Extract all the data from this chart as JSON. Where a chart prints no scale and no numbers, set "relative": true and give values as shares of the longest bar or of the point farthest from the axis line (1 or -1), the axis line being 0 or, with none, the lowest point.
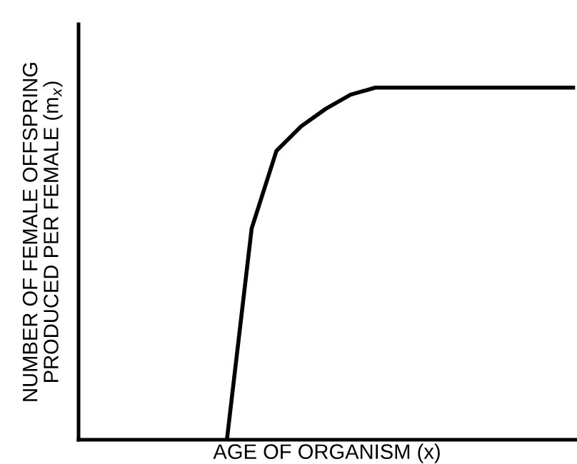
{
  "chart_data": {
    "type": "line",
    "relative": true,
    "xlabel": "AGE OF ORGANISM (x)",
    "ylabel": "NUMBER OF FEMALE OFFSPRING\nPRODUCED PER FEMALE (m$_{x}$)",
    "categories": [
      null,
      null,
      null,
      null,
      null,
      null,
      null,
      null,
      null,
      null,
      null,
      null,
      null,
      null,
      null,
      null,
      null,
      null,
      null,
      null,
      null
    ],
    "series": [
      {
        "color": "#000000",
        "values": [
          null,
          null,
          null,
          null,
          null,
          null,
          0,
          0.6,
          0.82,
          0.89,
          0.94,
          0.98,
          1,
          1,
          1,
          1,
          1,
          1,
          1,
          1,
          1
        ]
      }
    ],
    "tick_labels": false,
    "marker": "none",
    "line_style": "solid"
  }
}
